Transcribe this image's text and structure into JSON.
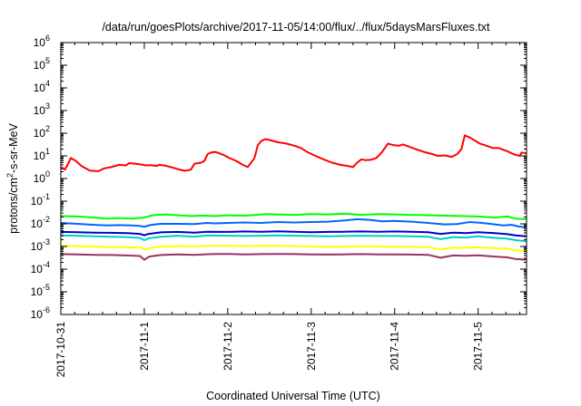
{
  "chart_data": {
    "type": "line",
    "title": "/data/run/goesPlots/archive/2017-11-05/14:00/flux/../flux/5daysMarsFluxes.txt",
    "xlabel": "Coordinated Universal Time (UTC)",
    "ylabel_main": "protons/cm",
    "ylabel_sup": "2",
    "ylabel_rest": "-s-sr-MeV",
    "y_scale": "log",
    "ylim": [
      1e-06,
      1000000.0
    ],
    "x_unit": "days since 2017-10-31 00:00 UTC",
    "xlim": [
      0,
      5.58
    ],
    "x_ticks": [
      {
        "value": 0,
        "label": "2017-10-31"
      },
      {
        "value": 1,
        "label": "2017-11-1"
      },
      {
        "value": 2,
        "label": "2017-11-2"
      },
      {
        "value": 3,
        "label": "2017-11-3"
      },
      {
        "value": 4,
        "label": "2017-11-4"
      },
      {
        "value": 5,
        "label": "2017-11-5"
      }
    ],
    "y_ticks": [
      {
        "exp": -6,
        "base": "10",
        "sup": "-6"
      },
      {
        "exp": -5,
        "base": "10",
        "sup": "-5"
      },
      {
        "exp": -4,
        "base": "10",
        "sup": "-4"
      },
      {
        "exp": -3,
        "base": "10",
        "sup": "-3"
      },
      {
        "exp": -2,
        "base": "10",
        "sup": "-2"
      },
      {
        "exp": -1,
        "base": "10",
        "sup": "-1"
      },
      {
        "exp": 0,
        "base": "10",
        "sup": "0"
      },
      {
        "exp": 1,
        "base": "10",
        "sup": "1"
      },
      {
        "exp": 2,
        "base": "10",
        "sup": "2"
      },
      {
        "exp": 3,
        "base": "10",
        "sup": "3"
      },
      {
        "exp": 4,
        "base": "10",
        "sup": "4"
      },
      {
        "exp": 5,
        "base": "10",
        "sup": "5"
      },
      {
        "exp": 6,
        "base": "10",
        "sup": "6"
      }
    ],
    "grid": false,
    "legend": "none",
    "series": [
      {
        "color": "#ff0000",
        "width": 2,
        "points": [
          [
            0,
            3
          ],
          [
            0.05,
            2.5
          ],
          [
            0.08,
            4
          ],
          [
            0.12,
            8
          ],
          [
            0.18,
            6
          ],
          [
            0.25,
            3.5
          ],
          [
            0.35,
            2.2
          ],
          [
            0.45,
            2.1
          ],
          [
            0.52,
            2.8
          ],
          [
            0.6,
            3.2
          ],
          [
            0.7,
            4
          ],
          [
            0.78,
            3.8
          ],
          [
            0.82,
            4.8
          ],
          [
            0.9,
            4.5
          ],
          [
            0.95,
            4.2
          ],
          [
            1.02,
            3.8
          ],
          [
            1.08,
            3.9
          ],
          [
            1.15,
            3.6
          ],
          [
            1.18,
            4
          ],
          [
            1.25,
            3.7
          ],
          [
            1.32,
            3.2
          ],
          [
            1.4,
            2.6
          ],
          [
            1.48,
            2.2
          ],
          [
            1.52,
            2.3
          ],
          [
            1.56,
            2.5
          ],
          [
            1.6,
            4.5
          ],
          [
            1.68,
            5
          ],
          [
            1.72,
            6
          ],
          [
            1.76,
            12
          ],
          [
            1.8,
            14
          ],
          [
            1.85,
            15
          ],
          [
            1.9,
            13
          ],
          [
            1.95,
            11
          ],
          [
            2.02,
            8
          ],
          [
            2.1,
            6
          ],
          [
            2.18,
            4
          ],
          [
            2.24,
            3.2
          ],
          [
            2.28,
            5
          ],
          [
            2.32,
            8
          ],
          [
            2.36,
            30
          ],
          [
            2.4,
            45
          ],
          [
            2.45,
            55
          ],
          [
            2.5,
            50
          ],
          [
            2.6,
            40
          ],
          [
            2.7,
            35
          ],
          [
            2.8,
            28
          ],
          [
            2.88,
            22
          ],
          [
            2.95,
            15
          ],
          [
            3.05,
            10
          ],
          [
            3.15,
            7
          ],
          [
            3.25,
            5
          ],
          [
            3.35,
            4
          ],
          [
            3.45,
            3.5
          ],
          [
            3.5,
            3.2
          ],
          [
            3.55,
            5
          ],
          [
            3.6,
            7
          ],
          [
            3.65,
            6.5
          ],
          [
            3.72,
            6.8
          ],
          [
            3.78,
            8
          ],
          [
            3.85,
            15
          ],
          [
            3.92,
            35
          ],
          [
            3.98,
            30
          ],
          [
            4.05,
            28
          ],
          [
            4.1,
            32
          ],
          [
            4.18,
            25
          ],
          [
            4.25,
            20
          ],
          [
            4.35,
            15
          ],
          [
            4.45,
            12
          ],
          [
            4.52,
            10
          ],
          [
            4.6,
            10.5
          ],
          [
            4.68,
            9
          ],
          [
            4.75,
            12
          ],
          [
            4.8,
            20
          ],
          [
            4.84,
            80
          ],
          [
            4.9,
            65
          ],
          [
            4.95,
            50
          ],
          [
            5.02,
            35
          ],
          [
            5.1,
            28
          ],
          [
            5.18,
            22
          ],
          [
            5.25,
            22
          ],
          [
            5.35,
            16
          ],
          [
            5.42,
            12
          ],
          [
            5.5,
            10
          ],
          [
            5.52,
            14
          ],
          [
            5.58,
            13
          ]
        ]
      },
      {
        "color": "#00ff00",
        "width": 2,
        "points": [
          [
            0,
            0.022
          ],
          [
            0.2,
            0.021
          ],
          [
            0.4,
            0.019
          ],
          [
            0.55,
            0.017
          ],
          [
            0.7,
            0.018
          ],
          [
            0.85,
            0.017
          ],
          [
            1,
            0.019
          ],
          [
            1.1,
            0.024
          ],
          [
            1.25,
            0.026
          ],
          [
            1.4,
            0.024
          ],
          [
            1.55,
            0.022
          ],
          [
            1.7,
            0.023
          ],
          [
            1.85,
            0.022
          ],
          [
            2,
            0.024
          ],
          [
            2.2,
            0.023
          ],
          [
            2.35,
            0.025
          ],
          [
            2.45,
            0.027
          ],
          [
            2.6,
            0.026
          ],
          [
            2.8,
            0.025
          ],
          [
            3,
            0.027
          ],
          [
            3.2,
            0.026
          ],
          [
            3.4,
            0.028
          ],
          [
            3.6,
            0.025
          ],
          [
            3.8,
            0.027
          ],
          [
            4,
            0.026
          ],
          [
            4.2,
            0.025
          ],
          [
            4.4,
            0.024
          ],
          [
            4.6,
            0.023
          ],
          [
            4.8,
            0.022
          ],
          [
            5,
            0.021
          ],
          [
            5.2,
            0.019
          ],
          [
            5.35,
            0.021
          ],
          [
            5.45,
            0.017
          ],
          [
            5.58,
            0.016
          ]
        ]
      },
      {
        "color": "#0066ff",
        "width": 2,
        "points": [
          [
            0,
            0.011
          ],
          [
            0.2,
            0.01
          ],
          [
            0.4,
            0.009
          ],
          [
            0.55,
            0.0085
          ],
          [
            0.7,
            0.0088
          ],
          [
            0.85,
            0.0085
          ],
          [
            0.95,
            0.008
          ],
          [
            1,
            0.0075
          ],
          [
            1.08,
            0.009
          ],
          [
            1.2,
            0.01
          ],
          [
            1.4,
            0.01
          ],
          [
            1.6,
            0.0098
          ],
          [
            1.75,
            0.011
          ],
          [
            1.85,
            0.0105
          ],
          [
            2,
            0.011
          ],
          [
            2.2,
            0.0115
          ],
          [
            2.4,
            0.011
          ],
          [
            2.6,
            0.012
          ],
          [
            2.8,
            0.0115
          ],
          [
            3,
            0.012
          ],
          [
            3.2,
            0.0125
          ],
          [
            3.4,
            0.014
          ],
          [
            3.55,
            0.016
          ],
          [
            3.7,
            0.015
          ],
          [
            3.85,
            0.013
          ],
          [
            4,
            0.0135
          ],
          [
            4.2,
            0.0125
          ],
          [
            4.4,
            0.011
          ],
          [
            4.6,
            0.0095
          ],
          [
            4.75,
            0.0098
          ],
          [
            4.9,
            0.012
          ],
          [
            5.05,
            0.011
          ],
          [
            5.2,
            0.0095
          ],
          [
            5.3,
            0.0085
          ],
          [
            5.4,
            0.009
          ],
          [
            5.5,
            0.0075
          ],
          [
            5.58,
            0.007
          ]
        ]
      },
      {
        "color": "#0000cc",
        "width": 2,
        "points": [
          [
            0,
            0.0044
          ],
          [
            0.2,
            0.0043
          ],
          [
            0.4,
            0.0041
          ],
          [
            0.6,
            0.004
          ],
          [
            0.8,
            0.0039
          ],
          [
            0.95,
            0.0036
          ],
          [
            1,
            0.0031
          ],
          [
            1.05,
            0.0036
          ],
          [
            1.2,
            0.0042
          ],
          [
            1.4,
            0.0044
          ],
          [
            1.6,
            0.0041
          ],
          [
            1.75,
            0.0045
          ],
          [
            2,
            0.0044
          ],
          [
            2.2,
            0.0046
          ],
          [
            2.4,
            0.0045
          ],
          [
            2.6,
            0.0047
          ],
          [
            2.8,
            0.0045
          ],
          [
            3,
            0.0043
          ],
          [
            3.2,
            0.0044
          ],
          [
            3.4,
            0.0045
          ],
          [
            3.6,
            0.0046
          ],
          [
            3.8,
            0.0045
          ],
          [
            4,
            0.0046
          ],
          [
            4.2,
            0.0045
          ],
          [
            4.4,
            0.0043
          ],
          [
            4.55,
            0.0036
          ],
          [
            4.7,
            0.0041
          ],
          [
            4.85,
            0.0039
          ],
          [
            5,
            0.0043
          ],
          [
            5.2,
            0.0039
          ],
          [
            5.35,
            0.0035
          ],
          [
            5.45,
            0.0031
          ],
          [
            5.58,
            0.0028
          ]
        ]
      },
      {
        "color": "#00cccc",
        "width": 2,
        "points": [
          [
            0,
            0.0031
          ],
          [
            0.2,
            0.003
          ],
          [
            0.4,
            0.0028
          ],
          [
            0.6,
            0.0027
          ],
          [
            0.8,
            0.0026
          ],
          [
            0.95,
            0.0024
          ],
          [
            1,
            0.0019
          ],
          [
            1.05,
            0.0023
          ],
          [
            1.2,
            0.0027
          ],
          [
            1.4,
            0.003
          ],
          [
            1.6,
            0.0027
          ],
          [
            1.75,
            0.0031
          ],
          [
            2,
            0.003
          ],
          [
            2.2,
            0.0029
          ],
          [
            2.4,
            0.003
          ],
          [
            2.6,
            0.0031
          ],
          [
            2.8,
            0.003
          ],
          [
            3,
            0.0029
          ],
          [
            3.2,
            0.0028
          ],
          [
            3.4,
            0.0029
          ],
          [
            3.6,
            0.003
          ],
          [
            3.8,
            0.0029
          ],
          [
            4,
            0.0029
          ],
          [
            4.2,
            0.0028
          ],
          [
            4.4,
            0.0027
          ],
          [
            4.55,
            0.0021
          ],
          [
            4.7,
            0.0026
          ],
          [
            4.85,
            0.0025
          ],
          [
            5,
            0.0028
          ],
          [
            5.2,
            0.0024
          ],
          [
            5.35,
            0.0022
          ],
          [
            5.45,
            0.0019
          ],
          [
            5.58,
            0.0017
          ]
        ]
      },
      {
        "color": "#ffff00",
        "width": 2,
        "points": [
          [
            0,
            0.0011
          ],
          [
            0.2,
            0.00105
          ],
          [
            0.4,
            0.001
          ],
          [
            0.6,
            0.00095
          ],
          [
            0.8,
            0.00092
          ],
          [
            0.95,
            0.0009
          ],
          [
            1,
            0.00075
          ],
          [
            1.08,
            0.00088
          ],
          [
            1.2,
            0.001
          ],
          [
            1.4,
            0.00105
          ],
          [
            1.6,
            0.001
          ],
          [
            1.8,
            0.0011
          ],
          [
            2,
            0.0011
          ],
          [
            2.2,
            0.00105
          ],
          [
            2.4,
            0.0011
          ],
          [
            2.6,
            0.00108
          ],
          [
            2.8,
            0.00105
          ],
          [
            3,
            0.001
          ],
          [
            3.2,
            0.00098
          ],
          [
            3.4,
            0.001
          ],
          [
            3.6,
            0.00102
          ],
          [
            3.8,
            0.001
          ],
          [
            4,
            0.00098
          ],
          [
            4.2,
            0.00096
          ],
          [
            4.4,
            0.00094
          ],
          [
            4.55,
            0.00075
          ],
          [
            4.7,
            0.0009
          ],
          [
            4.85,
            0.00088
          ],
          [
            5,
            0.00092
          ],
          [
            5.2,
            0.00085
          ],
          [
            5.35,
            0.0008
          ],
          [
            5.45,
            0.00068
          ],
          [
            5.58,
            0.00062
          ]
        ]
      },
      {
        "color": "#993366",
        "width": 2,
        "points": [
          [
            0,
            0.00046
          ],
          [
            0.2,
            0.00045
          ],
          [
            0.4,
            0.00043
          ],
          [
            0.6,
            0.00042
          ],
          [
            0.8,
            0.0004
          ],
          [
            0.95,
            0.00038
          ],
          [
            1,
            0.00026
          ],
          [
            1.06,
            0.00036
          ],
          [
            1.2,
            0.00042
          ],
          [
            1.4,
            0.00045
          ],
          [
            1.6,
            0.00043
          ],
          [
            1.8,
            0.00046
          ],
          [
            2,
            0.00047
          ],
          [
            2.2,
            0.00045
          ],
          [
            2.4,
            0.00046
          ],
          [
            2.6,
            0.00047
          ],
          [
            2.8,
            0.00046
          ],
          [
            3,
            0.00045
          ],
          [
            3.2,
            0.00044
          ],
          [
            3.4,
            0.00045
          ],
          [
            3.6,
            0.00046
          ],
          [
            3.8,
            0.00045
          ],
          [
            4,
            0.00045
          ],
          [
            4.2,
            0.00044
          ],
          [
            4.4,
            0.00043
          ],
          [
            4.55,
            0.00032
          ],
          [
            4.7,
            0.0004
          ],
          [
            4.85,
            0.00039
          ],
          [
            5,
            0.00041
          ],
          [
            5.2,
            0.00036
          ],
          [
            5.35,
            0.00033
          ],
          [
            5.45,
            0.00028
          ],
          [
            5.58,
            0.00026
          ]
        ]
      }
    ]
  }
}
